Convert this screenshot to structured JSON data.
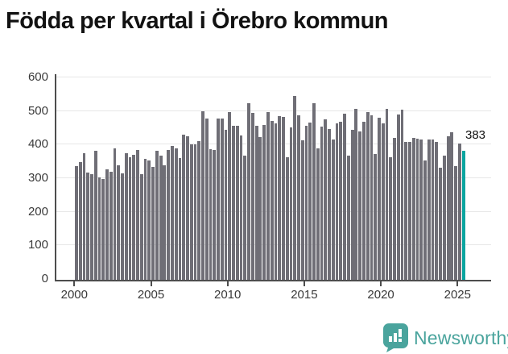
{
  "title": "Födda per kvartal i Örebro kommun",
  "annotation": {
    "last_value_label": "383"
  },
  "branding": {
    "name": "Newsworthy",
    "icon": "newsworthy-chart-bubble-icon"
  },
  "colors": {
    "bar": "#6f6e76",
    "highlight": "#0aa5a0",
    "grid": "#e7e7e7",
    "axis": "#4d4d4d",
    "brand": "#4aa49d"
  },
  "chart_data": {
    "type": "bar",
    "title": "Födda per kvartal i Örebro kommun",
    "xlabel": "",
    "ylabel": "",
    "x_unit": "quarter",
    "quarters_start": "2000-Q1",
    "quarters_end": "2025-Q2",
    "x_tick_labels": [
      "2000",
      "2005",
      "2010",
      "2015",
      "2020",
      "2025"
    ],
    "y_ticks": [
      0,
      100,
      200,
      300,
      400,
      500,
      600
    ],
    "ylim": [
      0,
      600
    ],
    "grid": true,
    "legend": false,
    "highlight_last_bar": true,
    "last_value_label": "383",
    "values": [
      337,
      351,
      377,
      318,
      315,
      383,
      305,
      299,
      329,
      321,
      391,
      341,
      317,
      377,
      365,
      371,
      386,
      314,
      360,
      356,
      335,
      383,
      370,
      341,
      387,
      397,
      391,
      362,
      431,
      427,
      403,
      403,
      413,
      501,
      479,
      389,
      386,
      479,
      479,
      445,
      498,
      458,
      458,
      429,
      370,
      526,
      496,
      458,
      425,
      460,
      498,
      472,
      466,
      487,
      485,
      365,
      453,
      546,
      489,
      415,
      457,
      467,
      525,
      391,
      455,
      477,
      449,
      418,
      466,
      471,
      495,
      369,
      445,
      509,
      441,
      469,
      498,
      489,
      373,
      482,
      466,
      509,
      365,
      421,
      491,
      507,
      410,
      410,
      422,
      419,
      418,
      354,
      417,
      418,
      411,
      333,
      369,
      426,
      439,
      338,
      405,
      383
    ]
  },
  "layout_note": ""
}
